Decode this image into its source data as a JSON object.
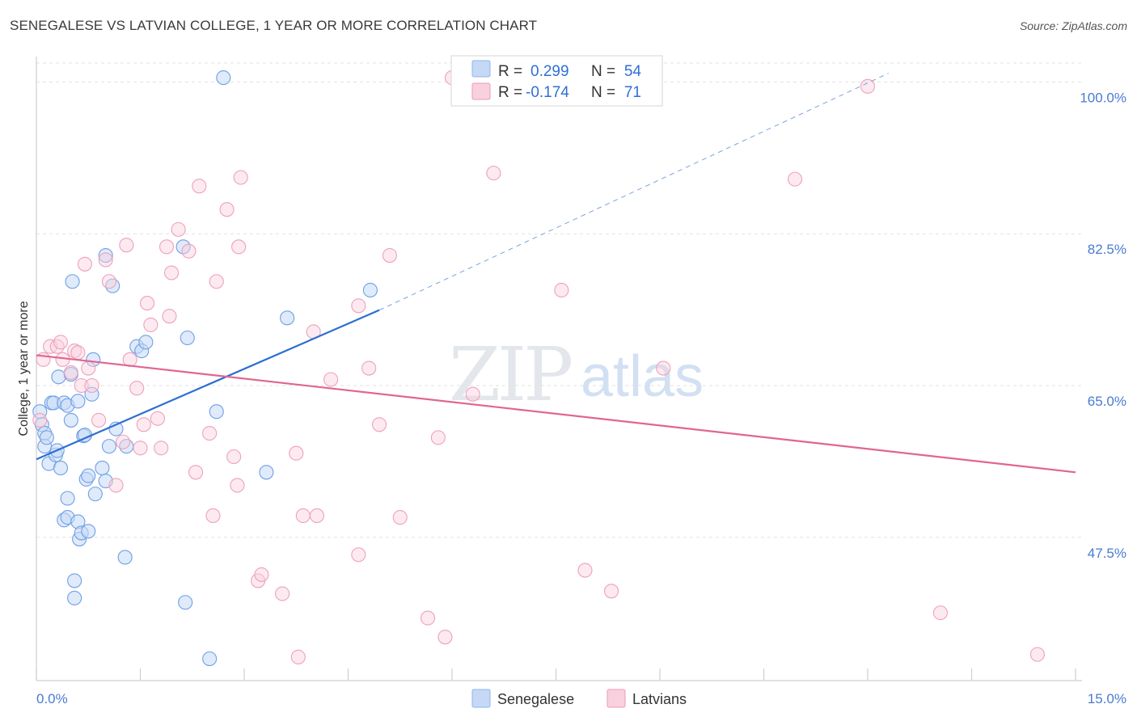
{
  "title": "SENEGALESE VS LATVIAN COLLEGE, 1 YEAR OR MORE CORRELATION CHART",
  "source": "Source: ZipAtlas.com",
  "watermark": {
    "zip": "ZIP",
    "atlas": "atlas"
  },
  "chart_data": {
    "type": "scatter",
    "title": "SENEGALESE VS LATVIAN COLLEGE, 1 YEAR OR MORE CORRELATION CHART",
    "xlabel": "",
    "ylabel": "College, 1 year or more",
    "xlim": [
      0,
      15
    ],
    "ylim": [
      33.5,
      102
    ],
    "x_tick_labels": [
      "0.0%",
      "15.0%"
    ],
    "y_ticks": [
      100,
      82.5,
      65,
      47.5
    ],
    "y_tick_labels": [
      "100.0%",
      "82.5%",
      "65.0%",
      "47.5%"
    ],
    "legend": [
      {
        "name": "Senegalese",
        "color": "#8fb4ec",
        "fill": "#c5d9f6",
        "r_label": "R =",
        "r": "0.299",
        "n_label": "N =",
        "n": "54"
      },
      {
        "name": "Latvians",
        "color": "#ee9ab6",
        "fill": "#f9d0de",
        "r_label": "R =",
        "r": "-0.174",
        "n_label": "N =",
        "n": "71"
      }
    ],
    "series": [
      {
        "name": "Senegalese",
        "points": [
          [
            0.05,
            62.0
          ],
          [
            0.08,
            60.5
          ],
          [
            0.12,
            59.5
          ],
          [
            0.12,
            58.0
          ],
          [
            0.15,
            59.0
          ],
          [
            0.18,
            56.0
          ],
          [
            0.22,
            63.0
          ],
          [
            0.25,
            63.0
          ],
          [
            0.28,
            57.0
          ],
          [
            0.3,
            57.5
          ],
          [
            0.32,
            66.0
          ],
          [
            0.35,
            55.5
          ],
          [
            0.4,
            63.0
          ],
          [
            0.4,
            49.5
          ],
          [
            0.45,
            49.8
          ],
          [
            0.45,
            62.7
          ],
          [
            0.45,
            52.0
          ],
          [
            0.5,
            66.3
          ],
          [
            0.5,
            61.0
          ],
          [
            0.52,
            77.0
          ],
          [
            0.55,
            42.5
          ],
          [
            0.55,
            40.5
          ],
          [
            0.6,
            63.2
          ],
          [
            0.6,
            49.3
          ],
          [
            0.62,
            47.3
          ],
          [
            0.65,
            48.0
          ],
          [
            0.68,
            59.2
          ],
          [
            0.7,
            59.3
          ],
          [
            0.72,
            54.2
          ],
          [
            0.75,
            48.2
          ],
          [
            0.75,
            54.6
          ],
          [
            0.8,
            64.0
          ],
          [
            0.82,
            68.0
          ],
          [
            0.85,
            52.5
          ],
          [
            0.95,
            55.5
          ],
          [
            1.0,
            54.0
          ],
          [
            1.0,
            80.0
          ],
          [
            1.05,
            58.0
          ],
          [
            1.1,
            76.5
          ],
          [
            1.15,
            60.0
          ],
          [
            1.28,
            45.2
          ],
          [
            1.3,
            58.0
          ],
          [
            1.45,
            69.5
          ],
          [
            1.52,
            69.0
          ],
          [
            1.58,
            70.0
          ],
          [
            2.12,
            81.0
          ],
          [
            2.15,
            40.0
          ],
          [
            2.18,
            70.5
          ],
          [
            2.5,
            33.5
          ],
          [
            2.6,
            62.0
          ],
          [
            2.7,
            100.5
          ],
          [
            3.32,
            55.0
          ],
          [
            3.62,
            72.8
          ],
          [
            4.82,
            76.0
          ]
        ],
        "trend": {
          "x1": 0.0,
          "y1": 56.5,
          "x2": 4.95,
          "y2": 73.7,
          "dash_x2": 12.3,
          "dash_y2": 101.0
        }
      },
      {
        "name": "Latvians",
        "points": [
          [
            0.05,
            61.0
          ],
          [
            0.1,
            68.0
          ],
          [
            0.2,
            69.5
          ],
          [
            0.3,
            69.5
          ],
          [
            0.35,
            70.0
          ],
          [
            0.38,
            68.0
          ],
          [
            0.5,
            66.5
          ],
          [
            0.55,
            69.0
          ],
          [
            0.6,
            68.8
          ],
          [
            0.65,
            65.0
          ],
          [
            0.7,
            79.0
          ],
          [
            0.75,
            67.0
          ],
          [
            0.8,
            65.0
          ],
          [
            0.9,
            61.0
          ],
          [
            1.0,
            79.5
          ],
          [
            1.05,
            77.0
          ],
          [
            1.15,
            53.5
          ],
          [
            1.25,
            58.5
          ],
          [
            1.3,
            81.2
          ],
          [
            1.35,
            68.0
          ],
          [
            1.45,
            64.7
          ],
          [
            1.5,
            57.8
          ],
          [
            1.55,
            60.5
          ],
          [
            1.6,
            74.5
          ],
          [
            1.65,
            72.0
          ],
          [
            1.75,
            61.2
          ],
          [
            1.8,
            57.8
          ],
          [
            1.88,
            81.0
          ],
          [
            1.92,
            73.0
          ],
          [
            1.95,
            78.0
          ],
          [
            2.05,
            83.0
          ],
          [
            2.2,
            80.5
          ],
          [
            2.3,
            55.0
          ],
          [
            2.35,
            88.0
          ],
          [
            2.5,
            59.5
          ],
          [
            2.55,
            50.0
          ],
          [
            2.6,
            77.0
          ],
          [
            2.75,
            85.3
          ],
          [
            2.85,
            56.8
          ],
          [
            2.9,
            53.5
          ],
          [
            2.92,
            81.0
          ],
          [
            2.95,
            89.0
          ],
          [
            3.2,
            42.5
          ],
          [
            3.25,
            43.2
          ],
          [
            3.55,
            41.0
          ],
          [
            3.75,
            57.2
          ],
          [
            3.78,
            33.7
          ],
          [
            3.85,
            50.0
          ],
          [
            4.0,
            71.2
          ],
          [
            4.05,
            50.0
          ],
          [
            4.25,
            65.7
          ],
          [
            4.65,
            45.5
          ],
          [
            4.65,
            74.2
          ],
          [
            4.8,
            67.0
          ],
          [
            4.95,
            60.5
          ],
          [
            5.1,
            80.0
          ],
          [
            5.25,
            49.8
          ],
          [
            5.65,
            38.2
          ],
          [
            5.8,
            59.0
          ],
          [
            5.9,
            36.0
          ],
          [
            6.0,
            100.5
          ],
          [
            6.3,
            64.0
          ],
          [
            6.6,
            89.5
          ],
          [
            7.58,
            76.0
          ],
          [
            7.92,
            43.7
          ],
          [
            8.3,
            41.3
          ],
          [
            9.05,
            67.0
          ],
          [
            10.95,
            88.8
          ],
          [
            12.0,
            99.5
          ],
          [
            13.05,
            38.8
          ],
          [
            14.45,
            34.0
          ]
        ],
        "trend": {
          "x1": 0.0,
          "y1": 68.5,
          "x2": 15.0,
          "y2": 55.0
        }
      }
    ]
  }
}
